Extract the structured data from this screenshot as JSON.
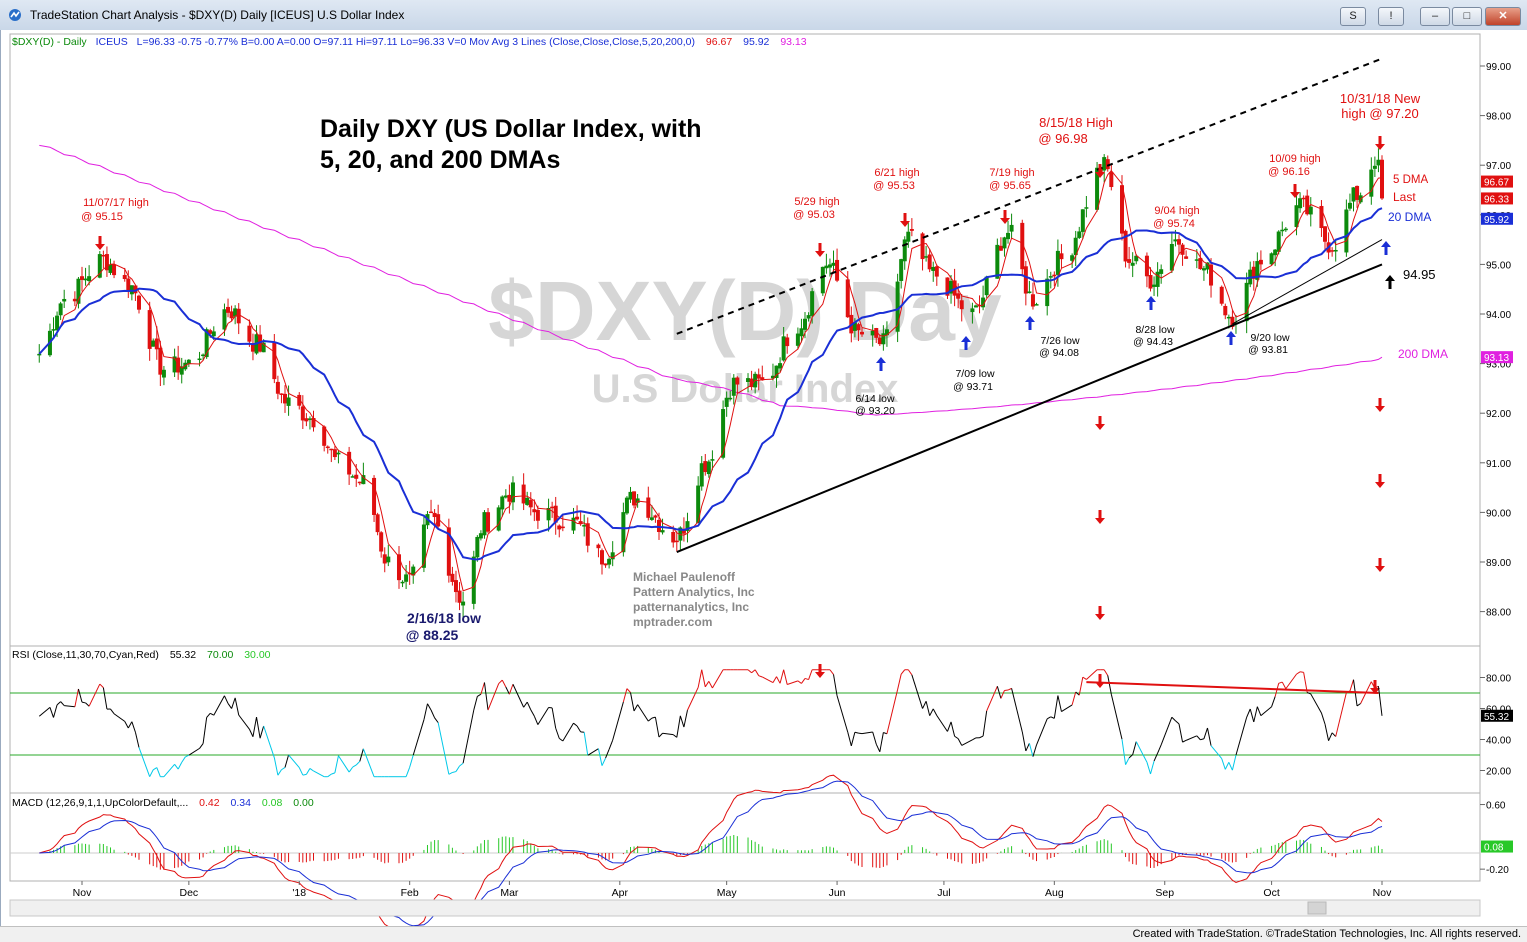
{
  "window": {
    "title": "TradeStation Chart Analysis - $DXY(D) Daily [ICEUS] U.S Dollar Index",
    "buttons": [
      "S",
      "!",
      "–",
      "□",
      "✕"
    ]
  },
  "header": {
    "symbol": "$DXY(D) - Daily",
    "exchange": "ICEUS",
    "stats": "L=96.33  -0.75  -0.77%  B=0.00  A=0.00  O=97.11  Hi=97.11  Lo=96.33  V=0  Mov Avg 3 Lines (Close,Close,Close,5,20,200,0)",
    "ma5": "96.67",
    "ma20": "95.92",
    "ma200": "93.13"
  },
  "watermark": {
    "symbol": "$DXY(D) Day",
    "name": "U.S Dollar Index"
  },
  "colors": {
    "up": "#0c8a0c",
    "down": "#e01010",
    "ma5": "#e01010",
    "ma20": "#1a2fd6",
    "ma200": "#e020e0",
    "annot_red": "#e01010",
    "annot_blue": "#1a2fd6",
    "text_navy": "#1a1a6e",
    "rsi_line": "#000000",
    "rsi_over": "#e01010",
    "rsi_under": "#00c8e8"
  },
  "chart_data": [
    {
      "type": "candlestick",
      "title": "Daily DXY (US Dollar Index, with 5, 20, and 200 DMAs",
      "ylim": [
        87,
        99.5
      ],
      "yticks": [
        "99.00",
        "98.00",
        "97.00",
        "96.00",
        "95.00",
        "94.00",
        "93.00",
        "92.00",
        "91.00",
        "90.00",
        "89.00",
        "88.00"
      ],
      "xticks": [
        "Nov",
        "Dec",
        "'18",
        "Feb",
        "Mar",
        "Apr",
        "May",
        "Jun",
        "Jul",
        "Aug",
        "Sep",
        "Oct",
        "Nov"
      ],
      "price_tags": [
        {
          "label": "96.67",
          "value": 96.67,
          "color": "#e01010"
        },
        {
          "label": "96.33",
          "value": 96.33,
          "color": "#e01010"
        },
        {
          "label": "95.92",
          "value": 95.92,
          "color": "#1a2fd6"
        },
        {
          "label": "93.13",
          "value": 93.13,
          "color": "#e020e0"
        }
      ],
      "series": [
        {
          "name": "Close",
          "keypoints": [
            [
              "2017-10-20",
              93.2
            ],
            [
              "2017-10-27",
              94.3
            ],
            [
              "2017-11-07",
              95.1
            ],
            [
              "2017-11-14",
              94.6
            ],
            [
              "2017-11-24",
              92.9
            ],
            [
              "2017-12-01",
              93.0
            ],
            [
              "2017-12-12",
              94.1
            ],
            [
              "2017-12-20",
              93.4
            ],
            [
              "2017-12-29",
              92.2
            ],
            [
              "2018-01-05",
              91.9
            ],
            [
              "2018-01-12",
              91.0
            ],
            [
              "2018-01-19",
              90.6
            ],
            [
              "2018-01-26",
              89.0
            ],
            [
              "2018-02-01",
              88.6
            ],
            [
              "2018-02-07",
              89.9
            ],
            [
              "2018-02-16",
              88.25
            ],
            [
              "2018-02-22",
              89.8
            ],
            [
              "2018-03-01",
              90.4
            ],
            [
              "2018-03-09",
              90.0
            ],
            [
              "2018-03-19",
              89.8
            ],
            [
              "2018-03-27",
              89.1
            ],
            [
              "2018-04-05",
              90.3
            ],
            [
              "2018-04-17",
              89.5
            ],
            [
              "2018-04-25",
              91.0
            ],
            [
              "2018-05-03",
              92.6
            ],
            [
              "2018-05-11",
              92.6
            ],
            [
              "2018-05-21",
              93.8
            ],
            [
              "2018-05-29",
              95.03
            ],
            [
              "2018-06-07",
              93.6
            ],
            [
              "2018-06-14",
              93.4
            ],
            [
              "2018-06-21",
              95.53
            ],
            [
              "2018-06-28",
              94.8
            ],
            [
              "2018-07-09",
              94.0
            ],
            [
              "2018-07-19",
              95.65
            ],
            [
              "2018-07-26",
              94.3
            ],
            [
              "2018-08-03",
              95.1
            ],
            [
              "2018-08-15",
              96.98
            ],
            [
              "2018-08-22",
              95.1
            ],
            [
              "2018-08-28",
              94.7
            ],
            [
              "2018-09-04",
              95.5
            ],
            [
              "2018-09-12",
              94.9
            ],
            [
              "2018-09-20",
              93.95
            ],
            [
              "2018-09-28",
              95.1
            ],
            [
              "2018-10-09",
              96.16
            ],
            [
              "2018-10-18",
              95.4
            ],
            [
              "2018-10-25",
              96.4
            ],
            [
              "2018-10-31",
              97.2
            ],
            [
              "2018-11-01",
              96.33
            ]
          ]
        },
        {
          "name": "5 DMA",
          "latest": 96.67
        },
        {
          "name": "20 DMA",
          "latest": 95.92
        },
        {
          "name": "200 DMA",
          "latest": 93.13
        }
      ],
      "trendlines": [
        {
          "style": "solid",
          "from": [
            "2018-04-17",
            89.2
          ],
          "to": [
            "2018-11-01",
            95.0
          ]
        },
        {
          "style": "solid-thin",
          "from": [
            "2018-09-20",
            93.8
          ],
          "to": [
            "2018-11-01",
            95.5
          ]
        },
        {
          "style": "dashed",
          "from": [
            "2018-04-17",
            93.6
          ],
          "to": [
            "2018-11-01",
            99.15
          ]
        }
      ],
      "annotations": [
        {
          "text": "11/07/17 high\n@ 95.15",
          "color": "red"
        },
        {
          "text": "2/16/18 low\n@ 88.25",
          "color": "navy"
        },
        {
          "text": "5/29 high\n@ 95.03",
          "color": "red"
        },
        {
          "text": "6/21 high\n@ 95.53",
          "color": "red"
        },
        {
          "text": "7/19 high\n@ 95.65",
          "color": "red"
        },
        {
          "text": "8/15/18 High\n@ 96.98",
          "color": "red"
        },
        {
          "text": "9/04 high\n@ 95.74",
          "color": "red"
        },
        {
          "text": "10/09 high\n@ 96.16",
          "color": "red"
        },
        {
          "text": "10/31/18 New\nhigh @ 97.20",
          "color": "red"
        },
        {
          "text": "6/14 low\n@ 93.20",
          "color": "black"
        },
        {
          "text": "7/09 low\n@ 93.71",
          "color": "black"
        },
        {
          "text": "7/26 low\n@ 94.08",
          "color": "black"
        },
        {
          "text": "8/28 low\n@ 94.43",
          "color": "black"
        },
        {
          "text": "9/20 low\n@ 93.81",
          "color": "black"
        },
        {
          "text": "5 DMA",
          "color": "red"
        },
        {
          "text": "Last",
          "color": "red"
        },
        {
          "text": "20 DMA",
          "color": "blue"
        },
        {
          "text": "200 DMA",
          "color": "magenta"
        },
        {
          "text": "94.95",
          "color": "black"
        }
      ],
      "credit": [
        "Michael Paulenoff",
        "Pattern Analytics, Inc",
        "patternanalytics, Inc",
        "mptrader.com"
      ]
    },
    {
      "type": "line",
      "title": "RSI (Close,11,30,70,Cyan,Red)",
      "values_label": [
        "55.32",
        "70.00",
        "30.00"
      ],
      "ylim": [
        10,
        90
      ],
      "yticks": [
        "80.00",
        "60.00",
        "40.00",
        "20.00"
      ],
      "levels": [
        70,
        30
      ],
      "series": [
        {
          "name": "RSI",
          "latest": 55.32,
          "tag": "55.32"
        }
      ],
      "divergence_line": {
        "from": [
          "2018-08-10",
          77
        ],
        "to": [
          "2018-10-31",
          70
        ]
      }
    },
    {
      "type": "bar",
      "title": "MACD (12,26,9,1,1,UpColorDefault,...",
      "values_label": [
        "0.42",
        "0.34",
        "0.08",
        "0.00"
      ],
      "ylim": [
        -0.45,
        0.85
      ],
      "yticks": [
        "0.60",
        "-0.20"
      ],
      "series": [
        {
          "name": "MACD",
          "latest": 0.42
        },
        {
          "name": "Signal",
          "latest": 0.34
        },
        {
          "name": "Histogram",
          "latest": 0.08,
          "tag": "0.08"
        }
      ]
    }
  ],
  "footer": {
    "credit": "Created with TradeStation. ©TradeStation Technologies, Inc. All rights reserved."
  }
}
